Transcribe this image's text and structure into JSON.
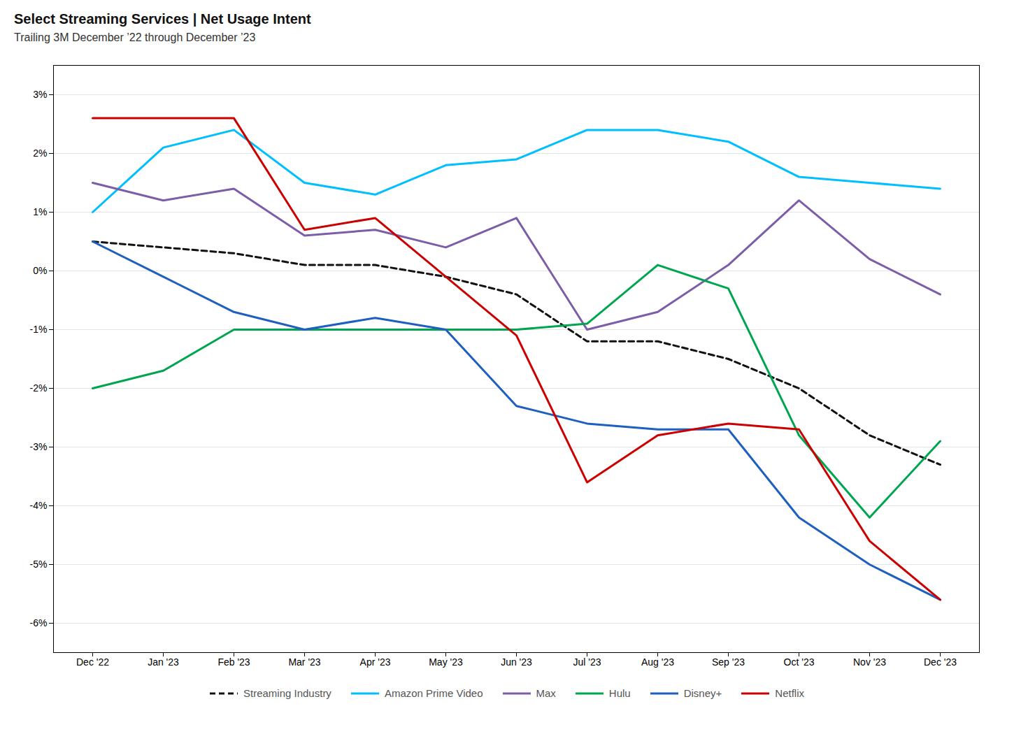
{
  "chart_data": {
    "type": "line",
    "title": "Select Streaming Services | Net Usage Intent",
    "subtitle": "Trailing 3M December ’22 through December ’23",
    "categories": [
      "Dec '22",
      "Jan '23",
      "Feb '23",
      "Mar '23",
      "Apr '23",
      "May '23",
      "Jun '23",
      "Jul '23",
      "Aug '23",
      "Sep '23",
      "Oct '23",
      "Nov '23",
      "Dec '23"
    ],
    "series": [
      {
        "name": "Streaming Industry",
        "color": "#111111",
        "line_style": "dashed",
        "values": [
          0.005,
          0.004,
          0.003,
          0.001,
          0.001,
          -0.001,
          -0.004,
          -0.012,
          -0.012,
          -0.015,
          -0.02,
          -0.028,
          -0.033
        ]
      },
      {
        "name": "Amazon Prime Video",
        "color": "#00BFFF",
        "line_style": "solid",
        "values": [
          0.01,
          0.021,
          0.024,
          0.015,
          0.013,
          0.018,
          0.019,
          0.024,
          0.024,
          0.022,
          0.016,
          0.015,
          0.014
        ]
      },
      {
        "name": "Max",
        "color": "#7B5EA7",
        "line_style": "solid",
        "values": [
          0.015,
          0.012,
          0.014,
          0.006,
          0.007,
          0.004,
          0.009,
          -0.01,
          -0.007,
          0.001,
          0.012,
          0.002,
          -0.004
        ]
      },
      {
        "name": "Hulu",
        "color": "#00A550",
        "line_style": "solid",
        "values": [
          -0.02,
          -0.017,
          -0.01,
          -0.01,
          -0.01,
          -0.01,
          -0.01,
          -0.009,
          0.001,
          -0.003,
          -0.028,
          -0.042,
          -0.029
        ]
      },
      {
        "name": "Disney+",
        "color": "#1E5FBF",
        "line_style": "solid",
        "values": [
          0.005,
          -0.001,
          -0.007,
          -0.01,
          -0.008,
          -0.01,
          -0.023,
          -0.026,
          -0.027,
          -0.027,
          -0.042,
          -0.05,
          -0.056
        ]
      },
      {
        "name": "Netflix",
        "color": "#CC0000",
        "line_style": "solid",
        "values": [
          0.026,
          0.026,
          0.026,
          0.007,
          0.009,
          -0.001,
          -0.011,
          -0.036,
          -0.028,
          -0.026,
          -0.027,
          -0.046,
          -0.056
        ]
      }
    ],
    "ylim": [
      -0.065,
      0.035
    ],
    "yticks": [
      {
        "value": 0.03,
        "label": "3%"
      },
      {
        "value": 0.02,
        "label": "2%"
      },
      {
        "value": 0.01,
        "label": "1%"
      },
      {
        "value": 0.0,
        "label": "0%"
      },
      {
        "value": -0.01,
        "label": "-1%"
      },
      {
        "value": -0.02,
        "label": "-2%"
      },
      {
        "value": -0.03,
        "label": "-3%"
      },
      {
        "value": -0.04,
        "label": "-4%"
      },
      {
        "value": -0.05,
        "label": "-5%"
      },
      {
        "value": -0.06,
        "label": "-6%"
      }
    ],
    "grid": true,
    "legend": "bottom"
  }
}
